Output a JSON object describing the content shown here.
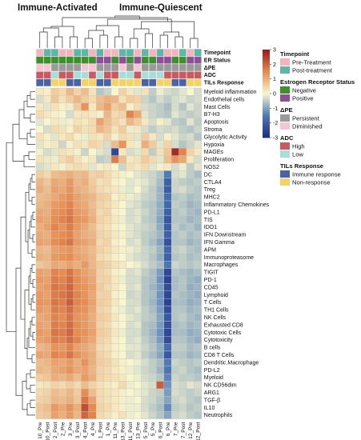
{
  "titles": {
    "left": "Immune-Activated",
    "right": "Immune-Quiescent"
  },
  "chart_data": {
    "type": "heatmap",
    "columns": [
      "10_Pre",
      "10_Post",
      "2_Post",
      "2_Pre",
      "3_Pre",
      "3_Post",
      "4_Post",
      "4_Pre",
      "1_Post",
      "1_Pre",
      "11_Pre",
      "13_Post",
      "11_Post",
      "13_Pre",
      "5_Post",
      "5_Pre",
      "6_Post",
      "6_Pre",
      "7_Pre",
      "7_Post",
      "12_Pre",
      "12_Post"
    ],
    "rows": [
      "Myeloid inflammation",
      "Endothelial cells",
      "Mast Cells",
      "B7-H3",
      "Apoptosis",
      "Stroma",
      "Glycolytic Activity",
      "Hypoxia",
      "MAGEs",
      "Proliferation",
      "NOS2",
      "DC",
      "CTLA4",
      "Treg",
      "MHC2",
      "Inflammatory Chemokines",
      "PD-L1",
      "TIS",
      "IDO1",
      "IFN Downstream",
      "IFN Gamma",
      "APM",
      "Immunoproteasome",
      "Macrophages",
      "TIGIT",
      "PD-1",
      "CD45",
      "Lymphoid",
      "T Cells",
      "TH1 Cells",
      "NK Cells",
      "Exhausted CD8",
      "Cytotoxic Cells",
      "Cytotoxicity",
      "B cells",
      "CD8 T Cells",
      "Dendritic.Macrophage",
      "PD-L2",
      "Myeloid",
      "NK CD56dim",
      "ARG1",
      "TGF-β",
      "IL10",
      "Neutrophils"
    ],
    "scale": {
      "min": -3,
      "max": 3,
      "ticks": [
        3,
        2,
        1,
        0,
        -1,
        -2,
        -3
      ]
    },
    "colors": {
      "low": "#1f2f8a",
      "mid": "#f8f6cf",
      "high": "#9c1a1c",
      "grid": "#c9c9c9"
    },
    "annotations": [
      {
        "name": "Timepoint",
        "values": [
          "Pre-Treatment",
          "Post-treatment",
          "Post-treatment",
          "Pre-Treatment",
          "Pre-Treatment",
          "Post-treatment",
          "Post-treatment",
          "Pre-Treatment",
          "Post-treatment",
          "Pre-Treatment",
          "Pre-Treatment",
          "Post-treatment",
          "Post-treatment",
          "Pre-Treatment",
          "Post-treatment",
          "Pre-Treatment",
          "Post-treatment",
          "Pre-Treatment",
          "Pre-Treatment",
          "Post-treatment",
          "Pre-Treatment",
          "Post-treatment"
        ]
      },
      {
        "name": "ER Status",
        "values": [
          "Negative",
          "Negative",
          "Negative",
          "Negative",
          "Negative",
          "Negative",
          "Negative",
          "Negative",
          "Positive",
          "Positive",
          "Negative",
          "Positive",
          "Negative",
          "Positive",
          "Negative",
          "Negative",
          "Positive",
          "Positive",
          "Negative",
          "Negative",
          "Positive",
          "Positive"
        ]
      },
      {
        "name": "ΔPE",
        "values": [
          "Diminished",
          "Diminished",
          "Persistent",
          "Persistent",
          "Persistent",
          "Persistent",
          "Diminished",
          "Diminished",
          "Persistent",
          "Persistent",
          "Persistent",
          "Diminished",
          "Persistent",
          "Diminished",
          "Persistent",
          "Persistent",
          "Persistent",
          "Persistent",
          "Persistent",
          "Persistent",
          "Persistent",
          "Persistent"
        ]
      },
      {
        "name": "ADC",
        "values": [
          "High",
          "High",
          "Low",
          "High",
          "High",
          "Low",
          "Low",
          "High",
          "Low",
          "High",
          "High",
          "Low",
          "Low",
          "High",
          "Low",
          "Low",
          "Low",
          "High",
          "High",
          "High",
          "High",
          "High"
        ]
      },
      {
        "name": "TILs Response",
        "values": [
          "Immune response",
          "Immune response",
          "Non-response",
          "Non-response",
          "Immune response",
          "Immune response",
          "Non-response",
          "Non-response",
          "Immune response",
          "Immune response",
          "Non-response",
          "Non-response",
          "Non-response",
          "Non-response",
          "Immune response",
          "Immune response",
          "Non-response",
          "Non-response",
          "Immune response",
          "Immune response",
          "Non-response",
          "Non-response"
        ]
      }
    ],
    "values": [
      [
        0.2,
        0.1,
        0.6,
        0.4,
        0.9,
        0.5,
        0.8,
        0.3,
        -0.6,
        -0.4,
        0.0,
        0.5,
        0.2,
        -0.2,
        0.3,
        -0.5,
        -0.1,
        -0.3,
        -0.4,
        -0.2,
        0.0,
        -0.3
      ],
      [
        -0.3,
        0.2,
        0.7,
        0.3,
        0.6,
        0.9,
        0.6,
        0.4,
        0.8,
        1.0,
        0.9,
        0.3,
        0.6,
        0.5,
        -0.4,
        -0.6,
        -0.3,
        -0.5,
        -0.3,
        -0.2,
        -0.4,
        -0.3
      ],
      [
        0.2,
        -0.2,
        0.3,
        0.1,
        -0.1,
        0.6,
        1.4,
        0.2,
        0.9,
        1.2,
        0.6,
        0.8,
        0.1,
        0.4,
        -0.3,
        -0.4,
        -0.5,
        -0.7,
        -0.3,
        -0.6,
        -0.2,
        -0.4
      ],
      [
        0.4,
        0.2,
        0.1,
        0.0,
        -0.3,
        0.2,
        0.3,
        0.2,
        0.1,
        0.9,
        0.4,
        0.5,
        1.6,
        1.1,
        -0.2,
        -0.4,
        -0.5,
        -0.6,
        -0.2,
        -0.4,
        -0.5,
        -0.4
      ],
      [
        -0.2,
        0.0,
        0.2,
        -0.1,
        0.1,
        0.3,
        0.2,
        0.4,
        1.2,
        0.8,
        0.5,
        0.3,
        0.9,
        0.6,
        0.2,
        -0.3,
        0.1,
        -0.2,
        -0.5,
        -0.6,
        -0.2,
        -0.5
      ],
      [
        0.0,
        -0.3,
        0.4,
        0.3,
        0.1,
        0.5,
        0.3,
        0.4,
        0.9,
        0.7,
        0.3,
        0.6,
        -0.1,
        0.2,
        -0.3,
        -0.5,
        -0.3,
        -0.4,
        -0.3,
        -0.5,
        -0.6,
        -0.4
      ],
      [
        0.3,
        0.1,
        -0.2,
        0.2,
        0.4,
        0.1,
        -0.1,
        0.3,
        0.2,
        0.5,
        0.1,
        0.4,
        0.3,
        -0.2,
        0.6,
        0.2,
        -0.3,
        0.1,
        -0.2,
        -0.4,
        -0.3,
        -0.6
      ],
      [
        -0.2,
        0.1,
        0.2,
        -0.4,
        0.1,
        0.3,
        0.2,
        0.5,
        0.4,
        -0.3,
        0.8,
        1.4,
        0.2,
        -0.1,
        1.0,
        0.6,
        -0.2,
        0.5,
        -0.3,
        -0.6,
        -0.4,
        -0.2
      ],
      [
        0.1,
        -0.3,
        -0.2,
        0.3,
        0.2,
        0.1,
        -0.4,
        0.0,
        -0.2,
        -0.3,
        -2.5,
        0.2,
        -0.3,
        -0.2,
        0.4,
        -0.5,
        0.3,
        0.7,
        2.8,
        1.6,
        0.5,
        0.2
      ],
      [
        0.3,
        0.2,
        -0.1,
        0.4,
        0.6,
        0.3,
        0.1,
        0.2,
        -0.5,
        -0.4,
        1.7,
        0.8,
        0.2,
        0.3,
        0.6,
        0.4,
        -0.2,
        0.8,
        1.4,
        1.1,
        0.2,
        -0.3
      ],
      [
        -0.3,
        -0.2,
        0.2,
        0.1,
        0.3,
        0.4,
        0.3,
        -0.2,
        0.1,
        0.2,
        0.0,
        -0.4,
        0.3,
        0.2,
        0.4,
        -0.2,
        0.1,
        0.2,
        -0.3,
        -0.1,
        -0.5,
        -0.2
      ],
      [
        0.6,
        0.4,
        0.8,
        0.9,
        1.0,
        0.8,
        0.9,
        0.5,
        0.6,
        0.4,
        0.2,
        0.1,
        0.0,
        -0.2,
        -0.3,
        -0.4,
        -0.6,
        -1.5,
        -0.3,
        -0.2,
        -0.5,
        -0.7
      ],
      [
        0.9,
        0.7,
        1.1,
        1.0,
        1.3,
        0.9,
        1.0,
        0.6,
        0.3,
        0.4,
        0.1,
        0.0,
        -0.2,
        -0.1,
        -0.2,
        -0.4,
        -0.7,
        -2.0,
        -0.4,
        -0.5,
        -0.6,
        -0.5
      ],
      [
        1.0,
        0.8,
        1.2,
        1.1,
        1.4,
        1.0,
        0.9,
        0.7,
        0.4,
        0.3,
        0.2,
        -0.1,
        -0.2,
        0.0,
        -0.3,
        -0.5,
        -0.8,
        -2.1,
        -0.4,
        -0.3,
        -0.5,
        -0.6
      ],
      [
        0.8,
        0.9,
        1.1,
        1.3,
        1.5,
        1.2,
        1.0,
        0.9,
        0.6,
        0.5,
        0.1,
        0.2,
        -0.1,
        -0.2,
        -0.4,
        -0.5,
        -0.8,
        -1.8,
        -0.6,
        -0.5,
        -0.7,
        -0.6
      ],
      [
        0.9,
        1.0,
        1.3,
        1.4,
        1.6,
        1.2,
        1.1,
        0.8,
        0.5,
        0.4,
        0.2,
        0.0,
        -0.2,
        -0.3,
        -0.5,
        -0.6,
        -0.9,
        -1.9,
        -0.5,
        -0.6,
        -0.8,
        -0.7
      ],
      [
        1.1,
        1.0,
        1.4,
        1.5,
        1.7,
        1.3,
        1.2,
        0.9,
        0.4,
        0.5,
        0.1,
        0.0,
        -0.3,
        -0.2,
        -0.4,
        -0.6,
        -0.9,
        -2.0,
        -0.6,
        -0.5,
        -0.7,
        -0.8
      ],
      [
        1.2,
        1.1,
        1.5,
        1.6,
        1.8,
        1.4,
        1.3,
        1.0,
        0.5,
        0.4,
        0.2,
        -0.1,
        -0.3,
        -0.2,
        -0.5,
        -0.6,
        -1.0,
        -2.2,
        -0.6,
        -0.6,
        -0.8,
        -0.7
      ],
      [
        1.0,
        1.2,
        1.6,
        1.4,
        1.7,
        1.3,
        1.1,
        0.8,
        0.4,
        0.3,
        0.1,
        0.0,
        -0.2,
        -0.3,
        -0.4,
        -0.5,
        -0.9,
        -2.1,
        -0.5,
        -0.7,
        -0.6,
        -0.8
      ],
      [
        1.1,
        1.0,
        1.4,
        1.5,
        1.6,
        1.2,
        1.0,
        0.9,
        0.5,
        0.4,
        0.2,
        0.1,
        -0.2,
        -0.3,
        -0.5,
        -0.6,
        -0.8,
        -2.0,
        -0.6,
        -0.5,
        -0.7,
        -0.6
      ],
      [
        1.2,
        1.1,
        1.5,
        1.6,
        1.8,
        1.3,
        1.2,
        1.0,
        0.4,
        0.5,
        0.1,
        0.0,
        -0.3,
        -0.2,
        -0.5,
        -0.7,
        -1.0,
        -2.3,
        -0.6,
        -0.6,
        -0.8,
        -0.7
      ],
      [
        0.9,
        0.8,
        1.2,
        1.3,
        1.4,
        1.1,
        1.0,
        0.8,
        0.5,
        0.4,
        0.2,
        0.1,
        -0.1,
        -0.2,
        -0.4,
        -0.5,
        -0.8,
        -1.9,
        -0.5,
        -0.4,
        -0.6,
        -0.7
      ],
      [
        1.0,
        0.9,
        1.3,
        1.4,
        1.5,
        1.2,
        1.1,
        0.9,
        0.4,
        0.3,
        0.1,
        0.0,
        -0.2,
        -0.3,
        -0.4,
        -0.6,
        -0.9,
        -2.0,
        -0.6,
        -0.5,
        -0.7,
        -0.6
      ],
      [
        0.7,
        0.8,
        1.1,
        1.0,
        1.2,
        1.0,
        1.3,
        0.9,
        0.6,
        0.5,
        0.3,
        0.2,
        0.0,
        -0.1,
        -0.3,
        -0.5,
        -0.7,
        -1.6,
        -0.4,
        -0.5,
        -0.6,
        -0.5
      ],
      [
        1.2,
        1.1,
        1.6,
        1.5,
        1.8,
        1.4,
        1.2,
        1.0,
        0.5,
        0.4,
        0.1,
        0.0,
        -0.3,
        -0.2,
        -0.5,
        -0.7,
        -1.1,
        -2.5,
        -0.6,
        -0.7,
        -0.8,
        -0.7
      ],
      [
        1.3,
        1.2,
        1.7,
        1.6,
        1.9,
        1.5,
        1.3,
        1.1,
        0.5,
        0.5,
        0.2,
        -0.1,
        -0.3,
        -0.3,
        -0.6,
        -0.7,
        -1.2,
        -2.6,
        -0.7,
        -0.6,
        -0.8,
        -0.9
      ],
      [
        1.2,
        1.3,
        1.8,
        1.7,
        2.0,
        1.5,
        1.4,
        1.2,
        0.6,
        0.4,
        0.2,
        0.0,
        -0.3,
        -0.2,
        -0.6,
        -0.8,
        -1.1,
        -2.4,
        -0.7,
        -0.6,
        -0.9,
        -0.8
      ],
      [
        1.3,
        1.2,
        1.7,
        1.8,
        2.0,
        1.6,
        1.4,
        1.1,
        0.5,
        0.5,
        0.1,
        0.0,
        -0.4,
        -0.3,
        -0.6,
        -0.7,
        -1.2,
        -2.5,
        -0.6,
        -0.7,
        -0.8,
        -0.9
      ],
      [
        1.4,
        1.3,
        1.8,
        1.7,
        2.1,
        1.6,
        1.5,
        1.2,
        0.6,
        0.5,
        0.2,
        0.0,
        -0.3,
        -0.3,
        -0.6,
        -0.8,
        -1.2,
        -2.6,
        -0.7,
        -0.7,
        -0.9,
        -0.8
      ],
      [
        1.3,
        1.2,
        1.7,
        1.6,
        1.9,
        1.5,
        1.4,
        1.1,
        0.5,
        0.4,
        0.1,
        -0.1,
        -0.3,
        -0.2,
        -0.5,
        -0.7,
        -1.1,
        -2.4,
        -0.6,
        -0.6,
        -0.8,
        -0.7
      ],
      [
        1.1,
        1.2,
        1.6,
        1.5,
        1.8,
        1.4,
        1.3,
        1.0,
        0.6,
        0.5,
        0.2,
        0.0,
        -0.2,
        -0.3,
        -0.5,
        -0.6,
        -1.0,
        -2.2,
        -0.6,
        -0.5,
        -0.7,
        -0.8
      ],
      [
        1.2,
        1.1,
        1.7,
        1.6,
        1.9,
        1.5,
        1.3,
        1.1,
        0.5,
        0.4,
        0.1,
        0.0,
        -0.3,
        -0.2,
        -0.6,
        -0.7,
        -1.1,
        -2.3,
        -0.7,
        -0.6,
        -0.8,
        -0.7
      ],
      [
        1.3,
        1.2,
        1.8,
        1.7,
        2.0,
        1.5,
        1.4,
        1.2,
        0.6,
        0.5,
        0.2,
        -0.1,
        -0.3,
        -0.3,
        -0.6,
        -0.8,
        -1.2,
        -2.5,
        -0.7,
        -0.7,
        -0.9,
        -0.8
      ],
      [
        1.2,
        1.3,
        1.7,
        1.6,
        1.9,
        1.6,
        1.3,
        1.1,
        0.5,
        0.4,
        0.1,
        0.0,
        -0.3,
        -0.2,
        -0.5,
        -0.7,
        -1.1,
        -2.4,
        -0.6,
        -0.6,
        -0.8,
        -0.9
      ],
      [
        0.9,
        1.0,
        1.4,
        1.3,
        1.6,
        1.2,
        1.1,
        0.9,
        0.4,
        0.3,
        0.1,
        0.0,
        -0.2,
        -0.2,
        -0.4,
        -0.6,
        -0.9,
        -1.8,
        -0.5,
        -0.5,
        -0.7,
        -0.6
      ],
      [
        1.2,
        1.1,
        1.6,
        1.5,
        1.8,
        1.4,
        1.2,
        1.0,
        0.5,
        0.4,
        0.1,
        0.0,
        -0.3,
        -0.2,
        -0.5,
        -0.7,
        -1.0,
        -2.2,
        -0.6,
        -0.6,
        -0.8,
        -0.7
      ],
      [
        0.8,
        0.9,
        1.2,
        1.1,
        1.3,
        1.0,
        1.4,
        1.0,
        0.6,
        0.5,
        0.3,
        0.1,
        0.0,
        -0.1,
        -0.3,
        -0.5,
        -0.7,
        -1.5,
        -0.4,
        -0.5,
        -0.6,
        -0.5
      ],
      [
        0.9,
        0.8,
        1.1,
        1.2,
        1.4,
        1.1,
        1.2,
        0.9,
        0.5,
        0.4,
        0.2,
        0.1,
        -0.1,
        -0.2,
        -0.4,
        -0.5,
        -0.8,
        -1.6,
        -0.5,
        -0.4,
        -0.6,
        -0.7
      ],
      [
        0.6,
        0.7,
        1.0,
        0.9,
        1.1,
        0.8,
        1.3,
        1.0,
        0.5,
        0.4,
        0.3,
        0.2,
        0.0,
        -0.1,
        -0.3,
        -0.4,
        -0.6,
        -1.4,
        -0.4,
        -0.5,
        -0.5,
        -0.6
      ],
      [
        0.2,
        0.3,
        0.5,
        0.4,
        0.6,
        0.4,
        0.8,
        0.5,
        0.3,
        0.2,
        0.1,
        0.4,
        -0.1,
        0.0,
        -0.2,
        -0.3,
        2.1,
        -1.2,
        -0.3,
        -0.4,
        -0.2,
        -0.3
      ],
      [
        0.4,
        0.5,
        0.8,
        0.7,
        0.9,
        0.6,
        1.5,
        0.8,
        0.4,
        0.3,
        0.2,
        0.1,
        0.0,
        -0.1,
        -0.2,
        -0.4,
        -0.5,
        -1.1,
        -0.3,
        -0.4,
        -0.5,
        -0.4
      ],
      [
        0.5,
        0.6,
        0.9,
        0.8,
        1.0,
        0.7,
        1.8,
        1.2,
        0.4,
        0.3,
        0.2,
        0.1,
        -0.1,
        0.0,
        -0.3,
        -0.4,
        -0.6,
        -1.0,
        -0.4,
        -0.3,
        -0.5,
        -0.6
      ],
      [
        0.7,
        0.8,
        1.3,
        1.1,
        1.4,
        1.0,
        2.3,
        1.5,
        0.5,
        0.4,
        0.2,
        0.1,
        -0.1,
        -0.1,
        -0.3,
        -0.5,
        -0.7,
        -1.3,
        -0.5,
        -0.4,
        -0.6,
        -0.5
      ],
      [
        0.6,
        0.7,
        1.2,
        1.0,
        1.3,
        0.9,
        2.0,
        1.6,
        0.4,
        0.3,
        0.1,
        0.3,
        -0.1,
        0.0,
        -0.2,
        -0.4,
        -0.6,
        -1.0,
        -0.4,
        -0.3,
        -0.5,
        -0.6
      ]
    ]
  },
  "legend": {
    "groups": [
      {
        "title": "Timepoint",
        "items": [
          {
            "label": "Pre-Treatment",
            "color": "#f4b3bd"
          },
          {
            "label": "Post-treatment",
            "color": "#5fb6a7"
          }
        ]
      },
      {
        "title": "Estrogen Receptor Status",
        "items": [
          {
            "label": "Negative",
            "color": "#3f8f2f"
          },
          {
            "label": "Positive",
            "color": "#8e4f97"
          }
        ]
      },
      {
        "title": "ΔPE",
        "items": [
          {
            "label": "Persistent",
            "color": "#9a9a9a"
          },
          {
            "label": "Diminished",
            "color": "#f4c6d1"
          }
        ]
      },
      {
        "title": "ADC",
        "items": [
          {
            "label": "High",
            "color": "#c85b62"
          },
          {
            "label": "Low",
            "color": "#a9ddd9"
          }
        ]
      },
      {
        "title": "TILs Response",
        "items": [
          {
            "label": "Immune response",
            "color": "#4a63a5"
          },
          {
            "label": "Non-response",
            "color": "#f3d267"
          }
        ]
      }
    ]
  }
}
